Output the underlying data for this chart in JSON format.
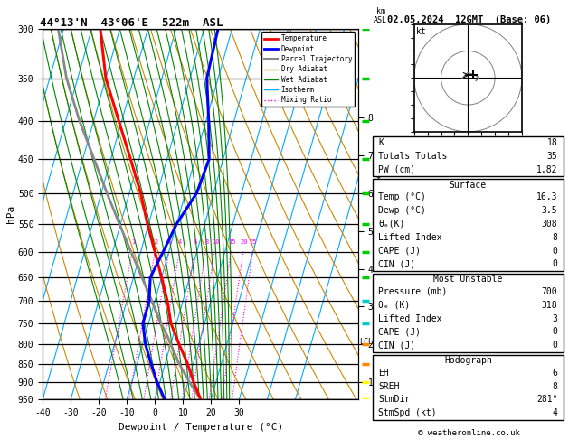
{
  "title_left": "44°13'N  43°06'E  522m  ASL",
  "title_right": "02.05.2024  12GMT  (Base: 06)",
  "xlabel": "Dewpoint / Temperature (°C)",
  "ylabel_left": "hPa",
  "pressure_levels": [
    300,
    350,
    400,
    450,
    500,
    550,
    600,
    650,
    700,
    750,
    800,
    850,
    900,
    950
  ],
  "temp_ticks": [
    -40,
    -30,
    -20,
    -10,
    0,
    10,
    20,
    30
  ],
  "background_color": "#ffffff",
  "temperature_line": {
    "pressure": [
      950,
      900,
      850,
      800,
      750,
      700,
      650,
      600,
      550,
      500,
      450,
      400,
      350,
      300
    ],
    "temp": [
      16.3,
      12.0,
      8.0,
      3.0,
      -2.0,
      -5.5,
      -10.0,
      -15.0,
      -20.5,
      -26.0,
      -33.0,
      -41.0,
      -50.0,
      -57.0
    ],
    "color": "#ff0000",
    "lw": 2.2
  },
  "dewpoint_line": {
    "pressure": [
      950,
      900,
      850,
      800,
      750,
      700,
      650,
      600,
      550,
      500,
      450,
      400,
      350,
      300
    ],
    "temp": [
      3.5,
      -1.0,
      -5.0,
      -9.0,
      -12.0,
      -12.0,
      -14.0,
      -12.0,
      -10.0,
      -6.0,
      -5.0,
      -9.0,
      -14.0,
      -15.0
    ],
    "color": "#0000ff",
    "lw": 2.2
  },
  "parcel_line": {
    "pressure": [
      950,
      900,
      850,
      800,
      780,
      750,
      700,
      650,
      600,
      550,
      500,
      450,
      400,
      350,
      300
    ],
    "temp": [
      16.3,
      10.5,
      5.0,
      0.0,
      -2.0,
      -5.5,
      -11.0,
      -17.0,
      -23.5,
      -30.5,
      -38.0,
      -46.0,
      -55.0,
      -64.0,
      -72.0
    ],
    "color": "#888888",
    "lw": 2.0
  },
  "mixing_ratio_values": [
    1,
    2,
    3,
    4,
    6,
    8,
    10,
    15,
    20,
    25
  ],
  "mixing_ratio_color": "#ff00ff",
  "isotherm_color": "#00aaff",
  "dry_adiabat_color": "#cc8800",
  "wet_adiabat_color": "#008800",
  "lcl_pressure": 795,
  "lcl_label": "LCL",
  "km_asl_ticks": [
    1,
    2,
    3,
    4,
    5,
    6,
    7,
    8
  ],
  "info_panel": {
    "k_index": 18,
    "totals_totals": 35,
    "pw_cm": "1.82",
    "surface_temp": "16.3",
    "surface_dewp": "3.5",
    "surface_theta_e": 308,
    "surface_lifted_index": 8,
    "surface_cape": 0,
    "surface_cin": 0,
    "mu_pressure": 700,
    "mu_theta_e": 318,
    "mu_lifted_index": 3,
    "mu_cape": 0,
    "mu_cin": 0,
    "hodo_eh": 6,
    "hodo_sreh": 8,
    "hodo_stmdir": "281°",
    "hodo_stmspd": 4
  },
  "legend_entries": [
    {
      "label": "Temperature",
      "color": "#ff0000",
      "lw": 2.0,
      "ls": "-"
    },
    {
      "label": "Dewpoint",
      "color": "#0000ff",
      "lw": 2.0,
      "ls": "-"
    },
    {
      "label": "Parcel Trajectory",
      "color": "#888888",
      "lw": 1.5,
      "ls": "-"
    },
    {
      "label": "Dry Adiabat",
      "color": "#cc8800",
      "lw": 1.0,
      "ls": "-"
    },
    {
      "label": "Wet Adiabat",
      "color": "#008800",
      "lw": 1.0,
      "ls": "-"
    },
    {
      "label": "Isotherm",
      "color": "#00aaff",
      "lw": 1.0,
      "ls": "-"
    },
    {
      "label": "Mixing Ratio",
      "color": "#ff00ff",
      "lw": 1.0,
      "ls": ":"
    }
  ],
  "wind_barb_pressures": [
    950,
    900,
    850,
    800,
    750,
    700,
    650,
    600,
    550,
    500,
    450,
    400,
    350,
    300
  ],
  "wind_barb_colors": [
    "#ffff00",
    "#ffff00",
    "#ff8800",
    "#ff8800",
    "#00cccc",
    "#00cccc",
    "#00cc00",
    "#00cc00",
    "#00cc00",
    "#00cc00",
    "#00cc00",
    "#00cc00",
    "#00cc00",
    "#00cc00"
  ],
  "hodograph_u": [
    -2,
    -1,
    0,
    2,
    3,
    4,
    3
  ],
  "hodograph_v": [
    0,
    1,
    2,
    1,
    1,
    0,
    -1
  ],
  "storm_u": 2,
  "storm_v": 1
}
